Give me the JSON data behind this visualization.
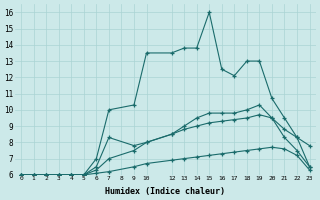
{
  "xlabel": "Humidex (Indice chaleur)",
  "bg_color": "#cce9e9",
  "grid_color": "#aad4d4",
  "line_color": "#1a6b6b",
  "xlim": [
    -0.5,
    23.5
  ],
  "ylim": [
    6,
    16.5
  ],
  "xtick_labels": [
    "0",
    "1",
    "2",
    "3",
    "4",
    "5",
    "6",
    "7",
    "8",
    "9",
    "10",
    "12",
    "13",
    "14",
    "15",
    "16",
    "17",
    "18",
    "19",
    "20",
    "21",
    "22",
    "23"
  ],
  "xtick_pos": [
    0,
    1,
    2,
    3,
    4,
    5,
    6,
    7,
    8,
    9,
    10,
    12,
    13,
    14,
    15,
    16,
    17,
    18,
    19,
    20,
    21,
    22,
    23
  ],
  "yticks": [
    6,
    7,
    8,
    9,
    10,
    11,
    12,
    13,
    14,
    15,
    16
  ],
  "series": [
    {
      "x": [
        0,
        1,
        2,
        3,
        4,
        5,
        6,
        7,
        9,
        10,
        12,
        13,
        14,
        15,
        16,
        17,
        18,
        19,
        20,
        21,
        22,
        23
      ],
      "y": [
        6,
        6,
        6,
        6,
        6,
        6,
        7,
        10,
        10.3,
        13.5,
        13.5,
        13.8,
        13.8,
        16,
        12.5,
        12.1,
        13,
        13,
        10.7,
        9.5,
        8.3,
        7.8
      ]
    },
    {
      "x": [
        0,
        1,
        2,
        3,
        4,
        5,
        6,
        7,
        9,
        10,
        12,
        13,
        14,
        15,
        16,
        17,
        18,
        19,
        20,
        21,
        22,
        23
      ],
      "y": [
        6,
        6,
        6,
        6,
        6,
        6,
        6.5,
        8.3,
        7.8,
        8.0,
        8.5,
        9.0,
        9.5,
        9.8,
        9.8,
        9.8,
        10.0,
        10.3,
        9.5,
        8.3,
        7.5,
        6.5
      ]
    },
    {
      "x": [
        0,
        1,
        2,
        3,
        4,
        5,
        6,
        7,
        9,
        10,
        12,
        13,
        14,
        15,
        16,
        17,
        18,
        19,
        20,
        21,
        22,
        23
      ],
      "y": [
        6,
        6,
        6,
        6,
        6,
        6,
        6.3,
        7.0,
        7.5,
        8.0,
        8.5,
        8.8,
        9.0,
        9.2,
        9.3,
        9.4,
        9.5,
        9.7,
        9.5,
        8.8,
        8.3,
        6.5
      ]
    },
    {
      "x": [
        0,
        1,
        2,
        3,
        4,
        5,
        6,
        7,
        9,
        10,
        12,
        13,
        14,
        15,
        16,
        17,
        18,
        19,
        20,
        21,
        22,
        23
      ],
      "y": [
        6,
        6,
        6,
        6,
        6,
        6,
        6.1,
        6.2,
        6.5,
        6.7,
        6.9,
        7.0,
        7.1,
        7.2,
        7.3,
        7.4,
        7.5,
        7.6,
        7.7,
        7.6,
        7.2,
        6.3
      ]
    }
  ]
}
